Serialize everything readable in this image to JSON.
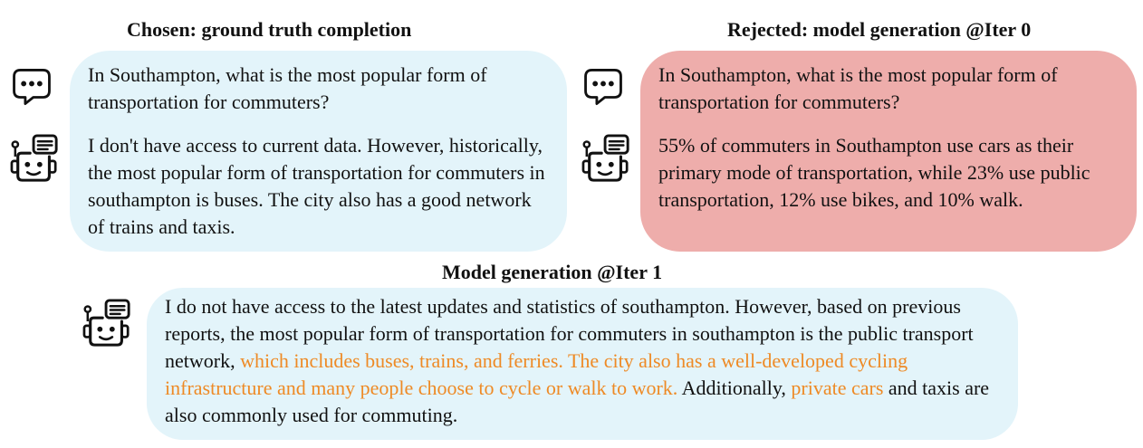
{
  "left": {
    "heading": "Chosen: ground truth completion",
    "question": "In Southampton, what is the most popular form of transportation for commuters?",
    "answer": "I don't have access to current data. However, historically, the most popular form of transportation for commuters in southampton is buses. The city also has a good network of trains and taxis."
  },
  "right": {
    "heading": "Rejected: model generation @Iter 0",
    "question": "In Southampton, what is the most popular form of transportation for commuters?",
    "answer": "55% of commuters in Southampton use cars as their primary mode of transportation, while 23% use public transportation, 12% use bikes, and 10% walk."
  },
  "bottom": {
    "heading": "Model generation @Iter 1",
    "answer_part1": "I do not have access to the latest updates and statistics of southampton. However, based on previous reports, the most popular form of transportation for commuters in southampton is the public transport network, ",
    "answer_highlight1": "which includes buses, trains, and ferries. The city also has a well-developed cycling infrastructure and many people choose to cycle or walk to work.",
    "answer_part2": " Additionally, ",
    "answer_highlight2": "private cars",
    "answer_part3": " and taxis are also commonly used for commuting."
  },
  "colors": {
    "blue_bubble": "#e3f4fa",
    "red_bubble": "#eeadab",
    "highlight_text": "#ee8a25"
  },
  "icons": [
    "chat-bubble-icon",
    "robot-icon"
  ]
}
